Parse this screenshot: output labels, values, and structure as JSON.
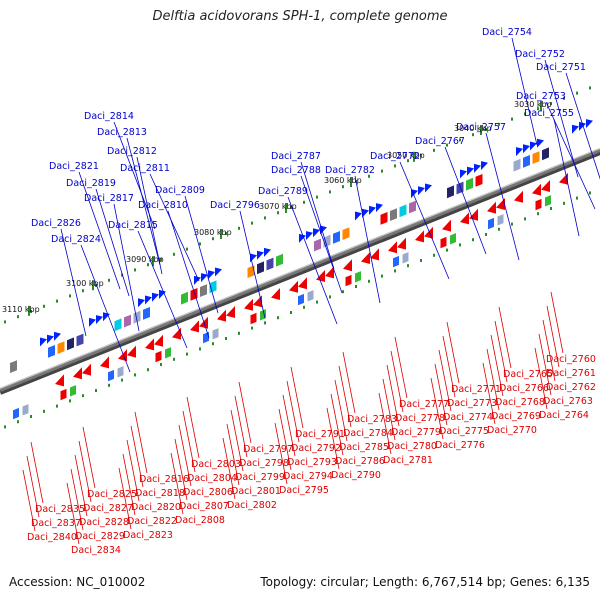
{
  "title": "Delftia acidovorans SPH-1, complete genome",
  "accession": "Accession: NC_010002",
  "topology": "Topology: circular; Length: 6,767,514 bp; Genes: 6,135",
  "colors": {
    "forward_label": "#0000cc",
    "reverse_label": "#dd0000",
    "forward_arrow": "#0022ff",
    "reverse_arrow": "#ee0000",
    "backbone": "#777777",
    "tick": "#2a8a2a"
  },
  "kbp_labels": [
    "3030 kbp",
    "3040 kbp",
    "3050 kbp",
    "3060 kbp",
    "3070 kbp",
    "3080 kbp",
    "3090 kbp",
    "3100 kbp",
    "3110 kbp"
  ],
  "forward_genes": [
    "Daci_2754",
    "Daci_2752",
    "Daci_2751",
    "Daci_2753",
    "Daci_2755",
    "Daci_2757",
    "Daci_2767",
    "Daci_2772",
    "Daci_2782",
    "Daci_2787",
    "Daci_2788",
    "Daci_2789",
    "Daci_2796",
    "Daci_2809",
    "Daci_2810",
    "Daci_2811",
    "Daci_2812",
    "Daci_2813",
    "Daci_2814",
    "Daci_2815",
    "Daci_2817",
    "Daci_2819",
    "Daci_2821",
    "Daci_2824",
    "Daci_2826"
  ],
  "reverse_genes": [
    "Daci_2760",
    "Daci_2761",
    "Daci_2762",
    "Daci_2763",
    "Daci_2764",
    "Daci_2765",
    "Daci_2766",
    "Daci_2768",
    "Daci_2769",
    "Daci_2770",
    "Daci_2771",
    "Daci_2773",
    "Daci_2774",
    "Daci_2775",
    "Daci_2776",
    "Daci_2777",
    "Daci_2778",
    "Daci_2779",
    "Daci_2780",
    "Daci_2781",
    "Daci_2783",
    "Daci_2784",
    "Daci_2785",
    "Daci_2786",
    "Daci_2790",
    "Daci_2791",
    "Daci_2792",
    "Daci_2793",
    "Daci_2794",
    "Daci_2795",
    "Daci_2797",
    "Daci_2798",
    "Daci_2799",
    "Daci_2801",
    "Daci_2802",
    "Daci_2803",
    "Daci_2804",
    "Daci_2806",
    "Daci_2807",
    "Daci_2808",
    "Daci_2816",
    "Daci_2818",
    "Daci_2820",
    "Daci_2822",
    "Daci_2823",
    "Daci_2825",
    "Daci_2827",
    "Daci_2828",
    "Daci_2829",
    "Daci_2834",
    "Daci_2835",
    "Daci_2837",
    "Daci_2840"
  ]
}
